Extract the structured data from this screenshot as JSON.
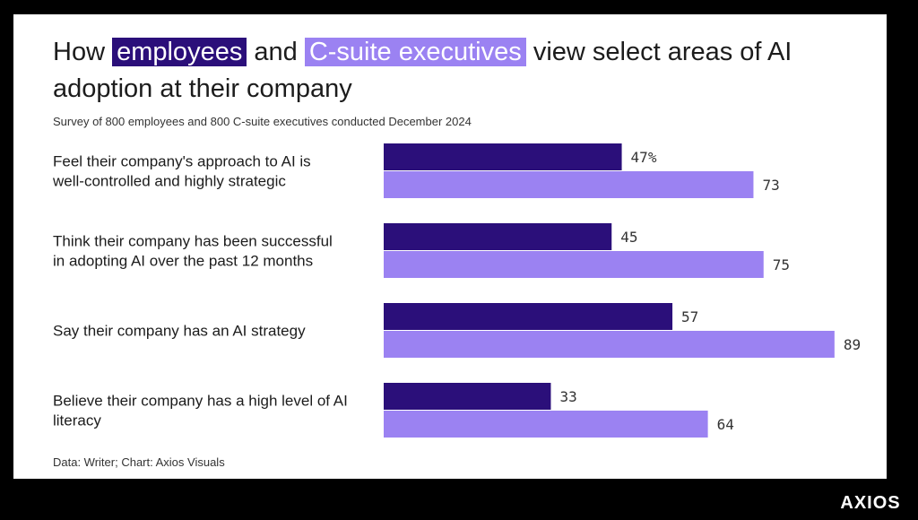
{
  "title": {
    "part1": "How ",
    "employees": "employees",
    "part2": " and ",
    "executives": "C-suite executives",
    "part3": " view select areas of AI adoption at their company"
  },
  "subtitle": "Survey of 800 employees and 800 C-suite executives conducted December 2024",
  "source": "Data: Writer; Chart: Axios Visuals",
  "logo": "AXIOS",
  "colors": {
    "employees": "#2b0f7a",
    "executives": "#9b82f2"
  },
  "chart_data": {
    "type": "bar",
    "orientation": "horizontal",
    "categories": [
      [
        "Feel their company's approach to AI is",
        "well-controlled and highly strategic"
      ],
      [
        "Think their company has been successful",
        "in adopting AI over the past 12 months"
      ],
      [
        "Say their company has an AI strategy"
      ],
      [
        "Believe their company has a high level of AI",
        "literacy"
      ]
    ],
    "series": [
      {
        "name": "employees",
        "values": [
          47,
          45,
          57,
          33
        ],
        "labels": [
          "47%",
          "45",
          "57",
          "33"
        ]
      },
      {
        "name": "C-suite executives",
        "values": [
          73,
          75,
          89,
          64
        ],
        "labels": [
          "73",
          "75",
          "89",
          "64"
        ]
      }
    ],
    "xlim": [
      0,
      100
    ],
    "grid": false,
    "legend": "title"
  }
}
